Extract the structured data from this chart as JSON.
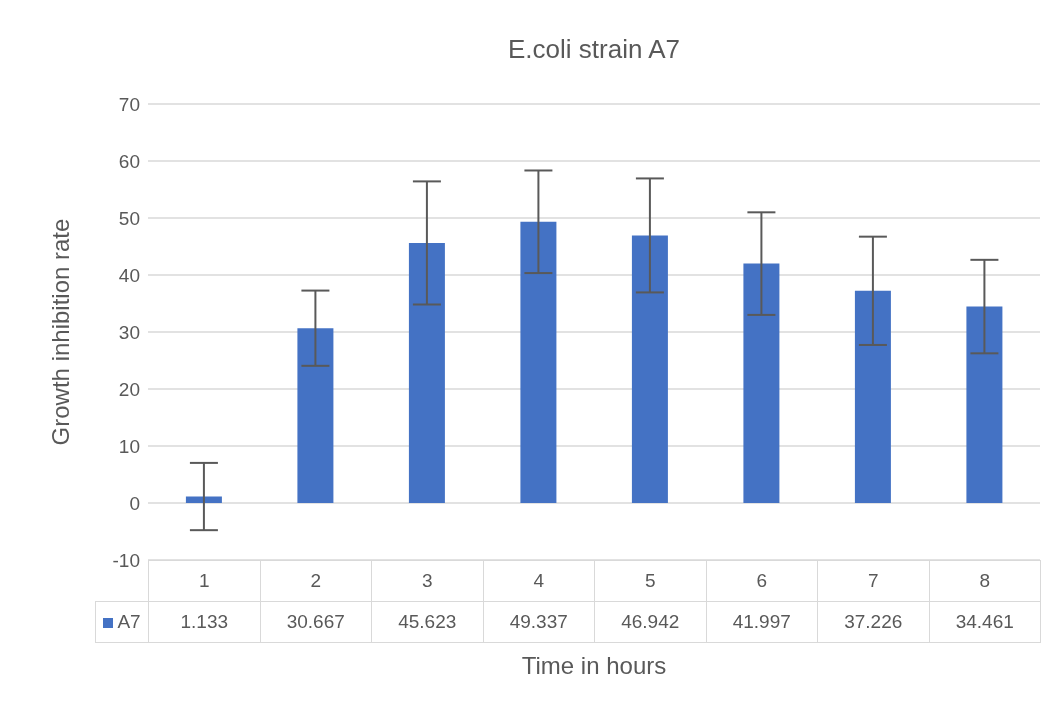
{
  "chart_data": {
    "type": "bar",
    "title": "E.coli strain A7",
    "xlabel": "Time in hours",
    "ylabel": "Growth inhibition rate",
    "categories": [
      "1",
      "2",
      "3",
      "4",
      "5",
      "6",
      "7",
      "8"
    ],
    "series": [
      {
        "name": "A7",
        "color": "#4472c4",
        "values": [
          1.133,
          30.667,
          45.623,
          49.337,
          46.942,
          41.997,
          37.226,
          34.461
        ],
        "errors": [
          5.9,
          6.6,
          10.8,
          9,
          10,
          9,
          9.5,
          8.2
        ]
      }
    ],
    "ylim": [
      -10,
      70
    ],
    "yticks": [
      -10,
      0,
      10,
      20,
      30,
      40,
      50,
      60,
      70
    ],
    "grid": "y",
    "data_labels": true
  }
}
